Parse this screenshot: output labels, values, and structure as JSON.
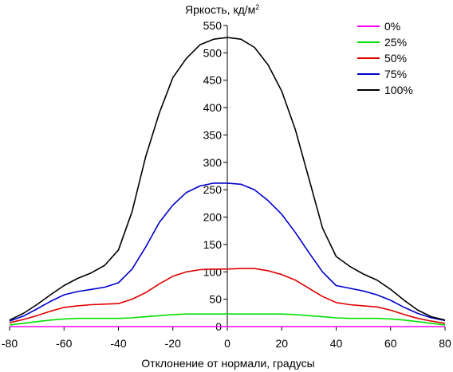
{
  "chart_data": {
    "type": "line",
    "ylabel": "Яркость, кд/м",
    "ylabel_sup": "2",
    "xlabel": "Отклонение от нормали, градусы",
    "xlim": [
      -80,
      80
    ],
    "ylim": [
      0,
      550
    ],
    "x_ticks": [
      -80,
      -60,
      -40,
      -20,
      0,
      20,
      40,
      60,
      80
    ],
    "y_ticks": [
      0,
      50,
      100,
      150,
      200,
      250,
      300,
      350,
      400,
      450,
      500,
      550
    ],
    "grid": false,
    "legend_position": "top-right",
    "x": [
      -80,
      -75,
      -70,
      -65,
      -60,
      -55,
      -50,
      -45,
      -40,
      -35,
      -30,
      -25,
      -20,
      -15,
      -10,
      -5,
      0,
      5,
      10,
      15,
      20,
      25,
      30,
      35,
      40,
      45,
      50,
      55,
      60,
      65,
      70,
      75,
      80
    ],
    "series": [
      {
        "name": "0%",
        "color": "#ff00ff",
        "values": [
          0,
          0,
          0,
          0,
          0,
          0,
          0,
          0,
          0,
          0,
          0,
          0,
          0,
          0,
          0,
          0,
          0,
          0,
          0,
          0,
          0,
          0,
          0,
          0,
          0,
          0,
          0,
          0,
          0,
          0,
          0,
          0,
          0
        ]
      },
      {
        "name": "25%",
        "color": "#00e000",
        "values": [
          3,
          6,
          9,
          12,
          14,
          15,
          15,
          15,
          15,
          16,
          18,
          20,
          22,
          23,
          23,
          23,
          23,
          23,
          23,
          23,
          23,
          22,
          20,
          18,
          16,
          15,
          15,
          15,
          14,
          12,
          9,
          6,
          3
        ]
      },
      {
        "name": "50%",
        "color": "#e00000",
        "values": [
          7,
          13,
          20,
          28,
          35,
          38,
          40,
          41,
          42,
          50,
          62,
          78,
          92,
          100,
          104,
          105,
          105,
          106,
          106,
          102,
          95,
          85,
          70,
          55,
          44,
          40,
          38,
          36,
          30,
          22,
          15,
          10,
          6
        ]
      },
      {
        "name": "75%",
        "color": "#0000cc",
        "values": [
          10,
          19,
          32,
          46,
          58,
          64,
          68,
          72,
          80,
          105,
          145,
          190,
          222,
          245,
          257,
          262,
          262,
          260,
          250,
          230,
          205,
          172,
          135,
          100,
          75,
          70,
          65,
          58,
          48,
          35,
          24,
          16,
          11
        ]
      },
      {
        "name": "100%",
        "color": "#000000",
        "values": [
          12,
          24,
          40,
          58,
          75,
          88,
          98,
          112,
          140,
          210,
          310,
          390,
          455,
          490,
          515,
          525,
          528,
          525,
          510,
          478,
          430,
          360,
          270,
          180,
          128,
          110,
          96,
          85,
          68,
          48,
          30,
          18,
          12
        ]
      }
    ]
  }
}
